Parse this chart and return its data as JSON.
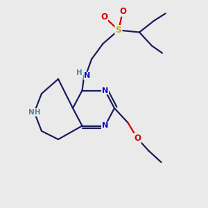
{
  "background_color": "#eaeaea",
  "bond_color": "#1a1a5e",
  "atom_colors": {
    "N": "#0000cc",
    "O": "#cc0000",
    "S": "#ccaa00",
    "NH": "#4a8a9a",
    "C": "#1a1a5e"
  },
  "figsize": [
    3.0,
    3.0
  ],
  "dpi": 100
}
